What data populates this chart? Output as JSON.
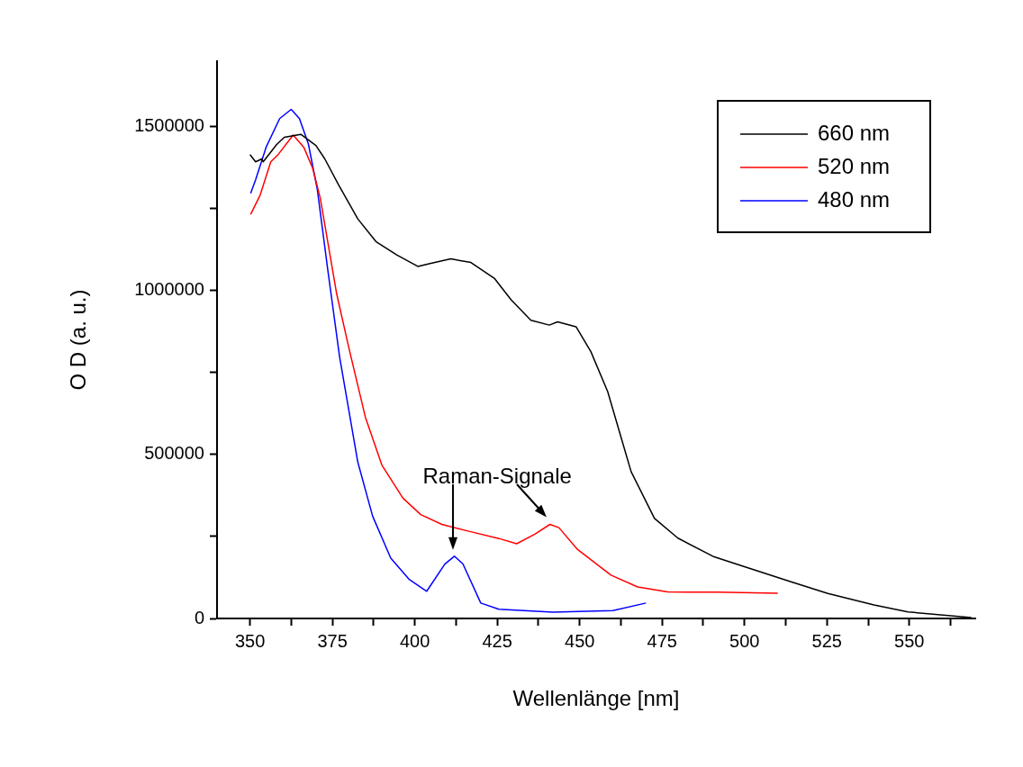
{
  "chart_data": {
    "type": "line",
    "xlabel": "Wellenlänge [nm]",
    "ylabel": "O D (a. u.)",
    "xlim": [
      340,
      570
    ],
    "ylim": [
      0,
      1700000
    ],
    "xticks": [
      350,
      {
        "value": 362.5,
        "label": null
      },
      375,
      {
        "value": 387.5,
        "label": null
      },
      400,
      {
        "value": 412.5,
        "label": null
      },
      425,
      {
        "value": 437.5,
        "label": null
      },
      450,
      {
        "value": 462.5,
        "label": null
      },
      475,
      {
        "value": 487.5,
        "label": null
      },
      500,
      {
        "value": 512.5,
        "label": null
      },
      525,
      {
        "value": 537.5,
        "label": null
      },
      550,
      {
        "value": 562.5,
        "label": null
      }
    ],
    "yticks": [
      0,
      {
        "value": 250000,
        "label": null
      },
      500000,
      {
        "value": 750000,
        "label": null
      },
      1000000,
      {
        "value": 1250000,
        "label": null
      },
      1500000
    ],
    "grid": false,
    "legend": "top right",
    "marker": "none",
    "line_style": "solid",
    "annotations": [
      "Raman-Signale"
    ],
    "series": [
      {
        "name": "660 nm",
        "color": "#000000",
        "x": [
          350,
          351.7,
          353.6,
          354,
          358.1,
          360.4,
          365.4,
          370,
          372.7,
          376.8,
          382.7,
          388.2,
          394.5,
          400.9,
          404.6,
          410.9,
          417,
          424.1,
          429.2,
          435.2,
          440.8,
          443.3,
          448.9,
          453.4,
          458.5,
          465.6,
          472.7,
          479.8,
          490.8,
          500,
          514.1,
          525.3,
          539.3,
          549.6,
          568.8
        ],
        "values": [
          1415000,
          1393000,
          1402000,
          1393000,
          1446000,
          1468000,
          1477000,
          1443000,
          1402000,
          1324000,
          1219000,
          1150000,
          1109000,
          1074000,
          1083000,
          1097000,
          1086000,
          1038000,
          972000,
          910000,
          895000,
          905000,
          890000,
          814000,
          692000,
          448000,
          305000,
          245000,
          188000,
          158000,
          112000,
          76000,
          41000,
          20000,
          3000
        ]
      },
      {
        "name": "520 nm",
        "color": "#ff0000",
        "x": [
          350.2,
          353.1,
          356.3,
          358.6,
          363.1,
          366.3,
          369,
          371.3,
          376.3,
          380,
          385,
          390,
          396.4,
          401.8,
          408.2,
          416.4,
          425.5,
          430.9,
          436.4,
          441,
          443.7,
          449.2,
          459.5,
          467.6,
          476.7,
          491.8,
          510.1
        ],
        "values": [
          1233000,
          1292000,
          1393000,
          1416000,
          1475000,
          1438000,
          1374000,
          1283000,
          990000,
          825000,
          614000,
          468000,
          367000,
          317000,
          287000,
          266000,
          244000,
          228000,
          257000,
          287000,
          277000,
          212000,
          132000,
          96000,
          81000,
          80000,
          77000
        ]
      },
      {
        "name": "480 nm",
        "color": "#0000ff",
        "x": [
          350.2,
          351.7,
          354.9,
          359,
          362.5,
          365,
          367.7,
          370.4,
          373.6,
          377.2,
          382.7,
          387.2,
          392.7,
          398.2,
          403.6,
          409.1,
          412,
          414.6,
          420,
          425.5,
          441.9,
          460.1,
          470.1
        ],
        "values": [
          1297000,
          1338000,
          1438000,
          1525000,
          1553000,
          1525000,
          1448000,
          1310000,
          1063000,
          797000,
          477000,
          312000,
          184000,
          120000,
          83000,
          166000,
          190000,
          166000,
          47000,
          28000,
          19000,
          24000,
          47000
        ]
      }
    ]
  }
}
